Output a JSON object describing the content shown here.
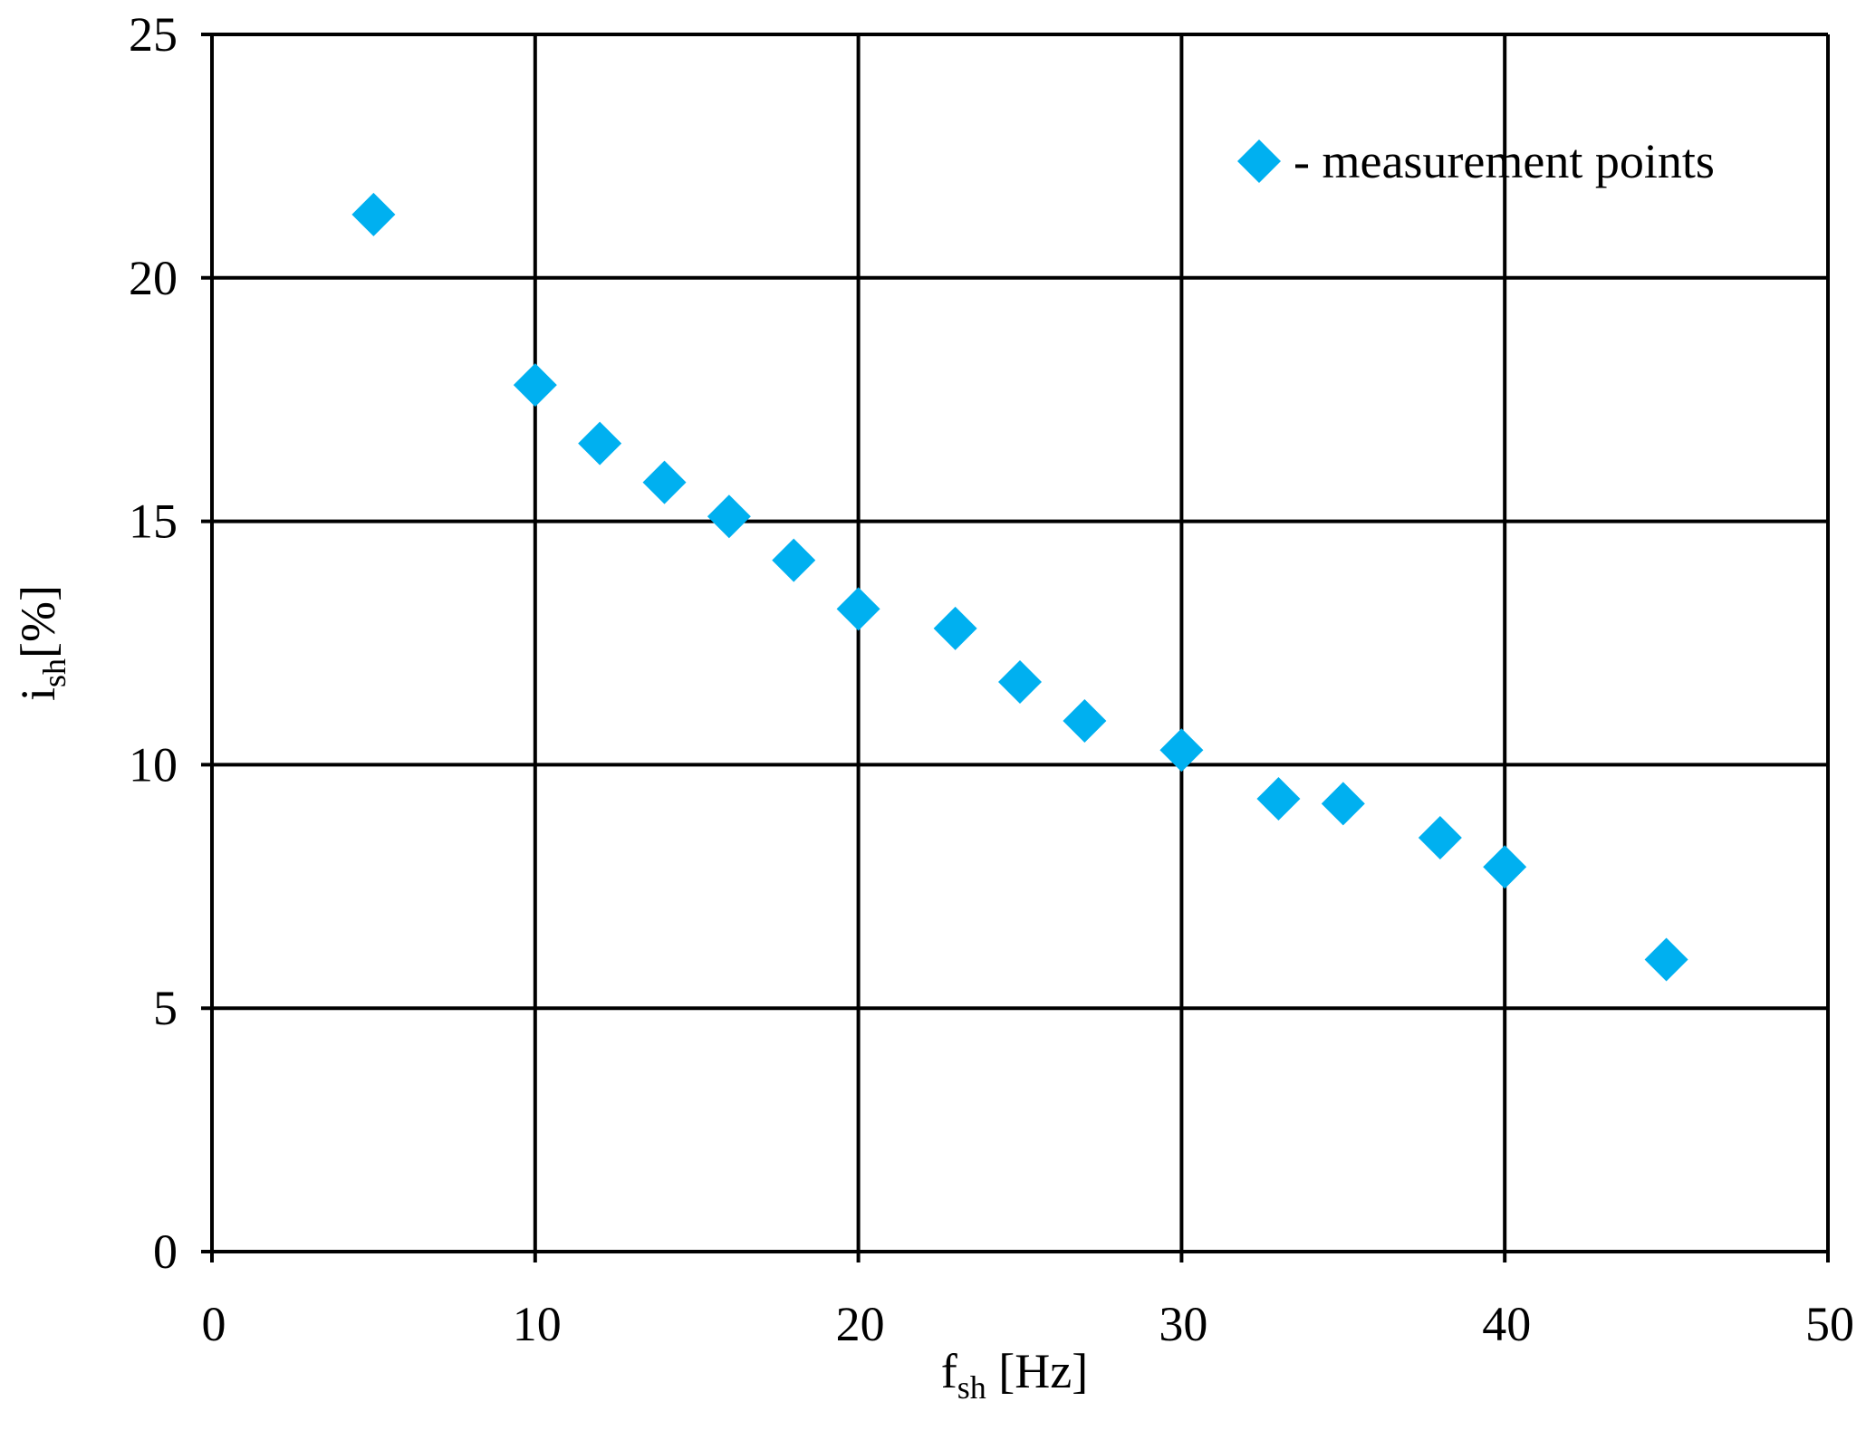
{
  "chart_data": {
    "type": "scatter",
    "title": "",
    "xlabel": {
      "main": "f",
      "sub": "sh",
      "suffix": " [Hz]"
    },
    "ylabel": {
      "main": "i",
      "sub": "sh",
      "suffix": "[%]"
    },
    "xlim": [
      0,
      50
    ],
    "ylim": [
      0,
      25
    ],
    "x_ticks": [
      0,
      10,
      20,
      30,
      40,
      50
    ],
    "y_ticks": [
      0,
      5,
      10,
      15,
      20,
      25
    ],
    "grid": true,
    "legend_position": "top-right",
    "series": [
      {
        "name": "- measurement points",
        "color": "#00b0f0",
        "marker": "diamond",
        "x": [
          5,
          10,
          12,
          14,
          16,
          18,
          20,
          23,
          25,
          27,
          30,
          33,
          35,
          38,
          40,
          45
        ],
        "y": [
          21.3,
          17.8,
          16.6,
          15.8,
          15.1,
          14.2,
          13.2,
          12.8,
          11.7,
          10.9,
          10.3,
          9.3,
          9.2,
          8.5,
          7.9,
          6.0
        ]
      }
    ]
  }
}
